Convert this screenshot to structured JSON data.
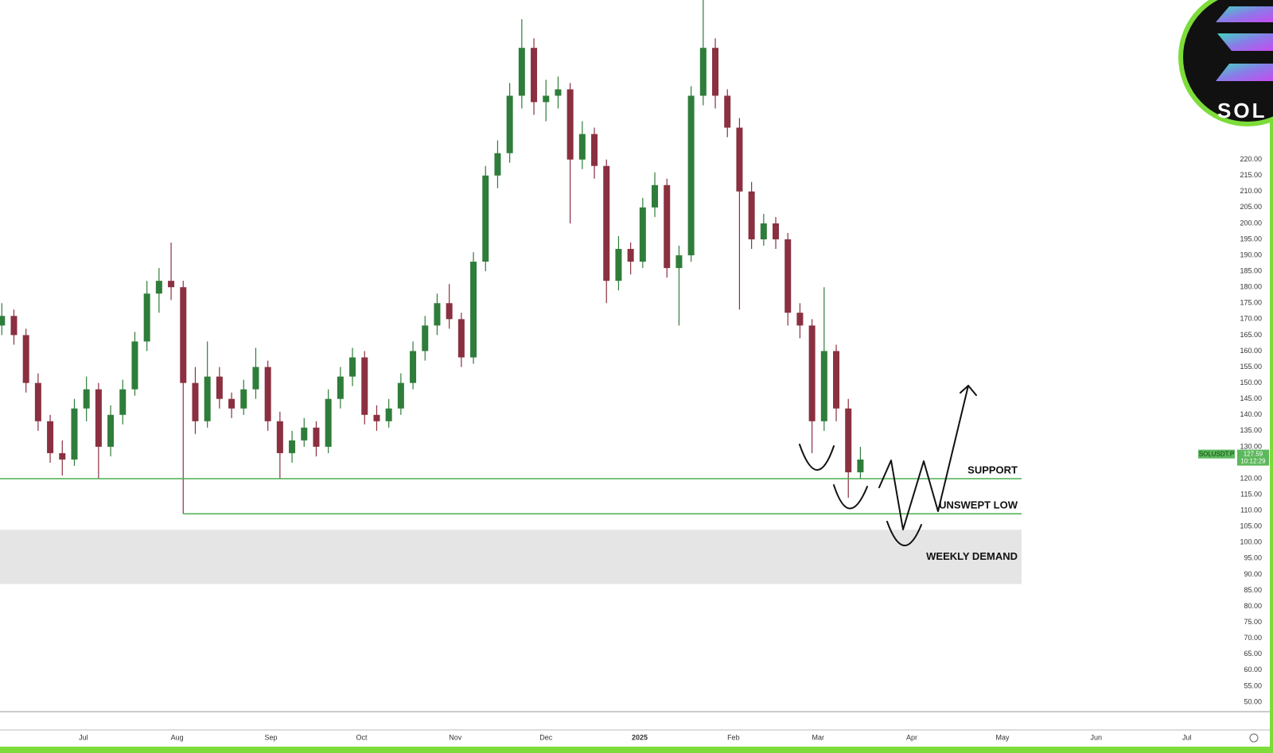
{
  "chart_data": {
    "type": "candlestick",
    "symbol": "SOLUSDT.P",
    "last_price": 127.59,
    "countdown": "10:12:29",
    "logo_text": "SOL",
    "up_color": "#2f7d3a",
    "down_color": "#8a3040",
    "x": [
      -27,
      -23,
      -19,
      -15,
      -11,
      -7,
      -3,
      1,
      5,
      9,
      13,
      17,
      21,
      25,
      29,
      33,
      37,
      41,
      45,
      49,
      53,
      57,
      61,
      65,
      69,
      73,
      77,
      81,
      85,
      89,
      93,
      97,
      101,
      105,
      109,
      113,
      117,
      121,
      125,
      129,
      133,
      137,
      141,
      145,
      149,
      153,
      157,
      161,
      165,
      169,
      173,
      177,
      181,
      185,
      189,
      193,
      197,
      201,
      205,
      209,
      213,
      217,
      221,
      225,
      229,
      233,
      237,
      241,
      245,
      249,
      253,
      257
    ],
    "open": [
      168,
      171,
      165,
      150,
      138,
      128,
      126,
      142,
      148,
      130,
      140,
      148,
      163,
      178,
      182,
      180,
      150,
      138,
      152,
      145,
      142,
      148,
      155,
      138,
      128,
      132,
      136,
      130,
      145,
      152,
      158,
      140,
      138,
      142,
      150,
      160,
      168,
      175,
      170,
      158,
      188,
      215,
      222,
      240,
      255,
      238,
      240,
      242,
      220,
      228,
      218,
      182,
      192,
      188,
      205,
      212,
      186,
      190,
      240,
      255,
      240,
      230,
      210,
      195,
      200,
      195,
      172,
      168,
      138,
      160,
      142,
      122
    ],
    "high": [
      175,
      173,
      167,
      153,
      140,
      132,
      145,
      152,
      150,
      143,
      151,
      166,
      182,
      186,
      194,
      182,
      155,
      163,
      155,
      147,
      151,
      161,
      157,
      141,
      135,
      139,
      138,
      148,
      155,
      161,
      160,
      143,
      145,
      153,
      163,
      171,
      178,
      181,
      172,
      191,
      218,
      226,
      244,
      264,
      258,
      245,
      246,
      244,
      232,
      230,
      220,
      196,
      194,
      208,
      216,
      214,
      193,
      243,
      270,
      258,
      242,
      233,
      213,
      203,
      202,
      197,
      175,
      170,
      180,
      162,
      145,
      130
    ],
    "low": [
      165,
      162,
      147,
      135,
      125,
      121,
      124,
      138,
      120,
      127,
      137,
      146,
      160,
      172,
      176,
      109,
      134,
      136,
      142,
      139,
      140,
      145,
      135,
      120,
      125,
      130,
      127,
      128,
      142,
      149,
      137,
      135,
      136,
      140,
      148,
      157,
      165,
      167,
      155,
      156,
      185,
      211,
      219,
      236,
      234,
      232,
      236,
      200,
      217,
      214,
      175,
      179,
      184,
      186,
      202,
      183,
      168,
      188,
      237,
      236,
      227,
      173,
      192,
      193,
      192,
      168,
      164,
      128,
      135,
      138,
      114,
      120
    ],
    "close": [
      171,
      165,
      150,
      138,
      128,
      126,
      142,
      148,
      130,
      140,
      148,
      163,
      178,
      182,
      180,
      150,
      138,
      152,
      145,
      142,
      148,
      155,
      138,
      128,
      132,
      136,
      130,
      145,
      152,
      158,
      140,
      138,
      142,
      150,
      160,
      168,
      175,
      170,
      158,
      188,
      215,
      222,
      240,
      255,
      238,
      240,
      242,
      220,
      228,
      218,
      182,
      192,
      188,
      205,
      212,
      186,
      190,
      240,
      255,
      240,
      230,
      210,
      195,
      200,
      195,
      172,
      168,
      138,
      160,
      142,
      122,
      126
    ],
    "xlim": [
      -27.6,
      379
    ],
    "xticks": [
      {
        "value": 0,
        "label": "Jul"
      },
      {
        "value": 31,
        "label": "Aug"
      },
      {
        "value": 62,
        "label": "Sep"
      },
      {
        "value": 92,
        "label": "Oct"
      },
      {
        "value": 123,
        "label": "Nov"
      },
      {
        "value": 153,
        "label": "Dec"
      },
      {
        "value": 184,
        "label": "2025"
      },
      {
        "value": 215,
        "label": "Feb"
      },
      {
        "value": 243,
        "label": "Mar"
      },
      {
        "value": 274,
        "label": "Apr"
      },
      {
        "value": 304,
        "label": "May"
      },
      {
        "value": 335,
        "label": "Jun"
      },
      {
        "value": 365,
        "label": "Jul"
      }
    ],
    "ylim": [
      47,
      270
    ],
    "yticks": [
      {
        "value": 50,
        "label": "50.00"
      },
      {
        "value": 55,
        "label": "55.00"
      },
      {
        "value": 60,
        "label": "60.00"
      },
      {
        "value": 65,
        "label": "65.00"
      },
      {
        "value": 70,
        "label": "70.00"
      },
      {
        "value": 75,
        "label": "75.00"
      },
      {
        "value": 80,
        "label": "80.00"
      },
      {
        "value": 85,
        "label": "85.00"
      },
      {
        "value": 90,
        "label": "90.00"
      },
      {
        "value": 95,
        "label": "95.00"
      },
      {
        "value": 100,
        "label": "100.00"
      },
      {
        "value": 105,
        "label": "105.00"
      },
      {
        "value": 110,
        "label": "110.00"
      },
      {
        "value": 115,
        "label": "115.00"
      },
      {
        "value": 120,
        "label": "120.00"
      },
      {
        "value": 125,
        "label": "125.00"
      },
      {
        "value": 130,
        "label": "130.00"
      },
      {
        "value": 135,
        "label": "135.00"
      },
      {
        "value": 140,
        "label": "140.00"
      },
      {
        "value": 145,
        "label": "145.00"
      },
      {
        "value": 150,
        "label": "150.00"
      },
      {
        "value": 155,
        "label": "155.00"
      },
      {
        "value": 160,
        "label": "160.00"
      },
      {
        "value": 165,
        "label": "165.00"
      },
      {
        "value": 170,
        "label": "170.00"
      },
      {
        "value": 175,
        "label": "175.00"
      },
      {
        "value": 180,
        "label": "180.00"
      },
      {
        "value": 185,
        "label": "185.00"
      },
      {
        "value": 190,
        "label": "190.00"
      },
      {
        "value": 195,
        "label": "195.00"
      },
      {
        "value": 200,
        "label": "200.00"
      },
      {
        "value": 205,
        "label": "205.00"
      },
      {
        "value": 210,
        "label": "210.00"
      },
      {
        "value": 215,
        "label": "215.00"
      },
      {
        "value": 220,
        "label": "220.00"
      }
    ],
    "levels": [
      {
        "label": "SUPPORT",
        "value": 120,
        "color": "#4caf50"
      },
      {
        "label": "UNSWEPT LOW",
        "value": 109,
        "color": "#4caf50"
      }
    ],
    "zones": [
      {
        "label": "WEEKLY DEMAND",
        "range": [
          87,
          104
        ],
        "color": "#e5e5e5"
      }
    ]
  }
}
